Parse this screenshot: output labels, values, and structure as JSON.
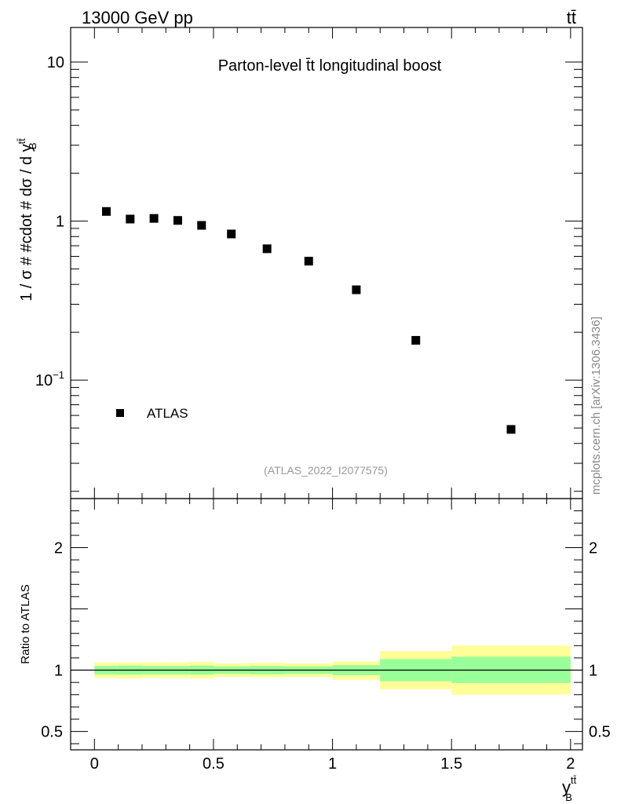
{
  "header": {
    "energy_label": "13000 GeV pp",
    "process_label": "tt̄"
  },
  "watermark": "mcplots.cern.ch [arXiv:1306.3436]",
  "chart_data": [
    {
      "type": "scatter",
      "title": "Parton-level t̄t longitudinal boost",
      "ylabel": "1 / σ # #cdot # dσ / d y",
      "ylabel_sup": "tt̄",
      "ylabel_sub": "B",
      "yscale": "log",
      "xlim": [
        -0.1,
        2.05
      ],
      "ylim": [
        0.018,
        16.5
      ],
      "y_ticks": [
        {
          "value": 10,
          "label": "10"
        },
        {
          "value": 1,
          "label": "1"
        },
        {
          "value": 0.1,
          "label": "10",
          "sup": "−1"
        }
      ],
      "analysis_label": "(ATLAS_2022_I2077575)",
      "series": [
        {
          "name": "ATLAS",
          "color": "#000000",
          "x": [
            0.05,
            0.15,
            0.25,
            0.35,
            0.45,
            0.575,
            0.725,
            0.9,
            1.1,
            1.35,
            1.75
          ],
          "y": [
            1.15,
            1.03,
            1.04,
            1.01,
            0.94,
            0.83,
            0.67,
            0.56,
            0.37,
            0.178,
            0.049
          ]
        }
      ],
      "legend_position": "bottom-left"
    },
    {
      "type": "area",
      "ylabel": "Ratio to ATLAS",
      "ylim": [
        0.35,
        2.4
      ],
      "xlim": [
        -0.1,
        2.05
      ],
      "y_ticks": [
        {
          "value": 2,
          "label": "2"
        },
        {
          "value": 1,
          "label": "1"
        },
        {
          "value": 0.5,
          "label": "0.5"
        }
      ],
      "x_ticks": [
        {
          "value": 0,
          "label": "0"
        },
        {
          "value": 0.5,
          "label": "0.5"
        },
        {
          "value": 1,
          "label": "1"
        },
        {
          "value": 1.5,
          "label": "1.5"
        },
        {
          "value": 2,
          "label": "2"
        }
      ],
      "xlabel": "y",
      "xlabel_sup": "tt̄",
      "xlabel_sub": "B",
      "reference_line": 1,
      "bins": [
        {
          "lo": 0.0,
          "hi": 0.1,
          "stat": [
            0.966,
            1.034
          ],
          "total": [
            0.937,
            1.063
          ]
        },
        {
          "lo": 0.1,
          "hi": 0.2,
          "stat": [
            0.963,
            1.037
          ],
          "total": [
            0.932,
            1.063
          ]
        },
        {
          "lo": 0.2,
          "hi": 0.3,
          "stat": [
            0.966,
            1.034
          ],
          "total": [
            0.939,
            1.063
          ]
        },
        {
          "lo": 0.3,
          "hi": 0.4,
          "stat": [
            0.966,
            1.034
          ],
          "total": [
            0.939,
            1.063
          ]
        },
        {
          "lo": 0.4,
          "hi": 0.5,
          "stat": [
            0.963,
            1.037
          ],
          "total": [
            0.932,
            1.068
          ]
        },
        {
          "lo": 0.5,
          "hi": 0.65,
          "stat": [
            0.97,
            1.03
          ],
          "total": [
            0.946,
            1.054
          ]
        },
        {
          "lo": 0.65,
          "hi": 0.8,
          "stat": [
            0.966,
            1.034
          ],
          "total": [
            0.941,
            1.059
          ]
        },
        {
          "lo": 0.8,
          "hi": 1.0,
          "stat": [
            0.97,
            1.03
          ],
          "total": [
            0.946,
            1.054
          ]
        },
        {
          "lo": 1.0,
          "hi": 1.2,
          "stat": [
            0.959,
            1.041
          ],
          "total": [
            0.922,
            1.071
          ]
        },
        {
          "lo": 1.2,
          "hi": 1.5,
          "stat": [
            0.91,
            1.09
          ],
          "total": [
            0.844,
            1.156
          ]
        },
        {
          "lo": 1.5,
          "hi": 2.0,
          "stat": [
            0.895,
            1.11
          ],
          "total": [
            0.8,
            1.2
          ]
        }
      ],
      "stat_color": "#99ff99",
      "total_color": "#ffff99"
    }
  ]
}
